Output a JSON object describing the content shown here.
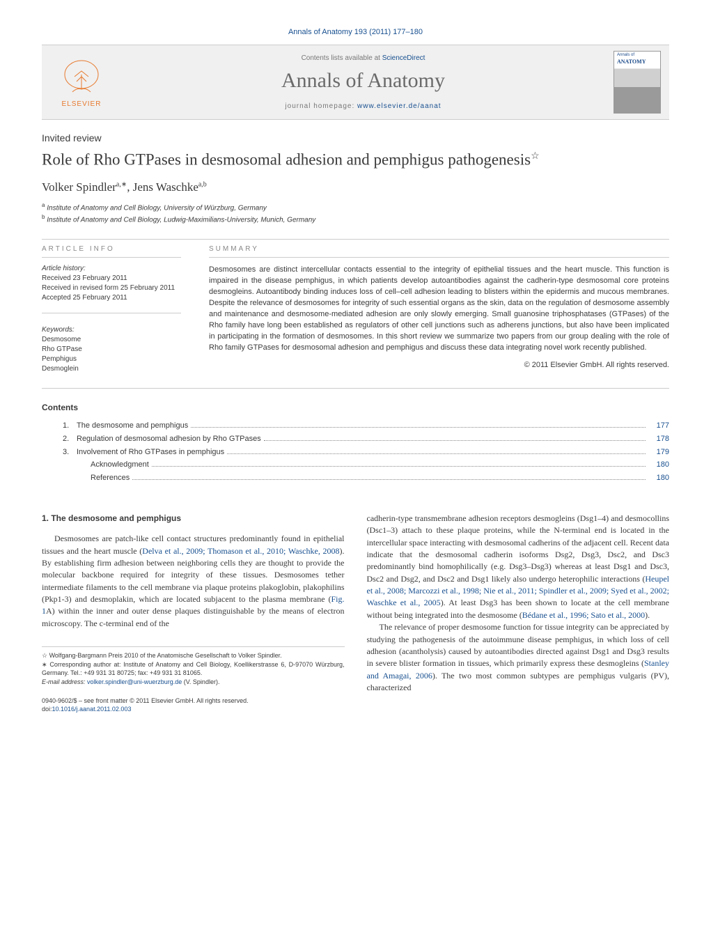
{
  "journal_ref": "Annals of Anatomy 193 (2011) 177–180",
  "header": {
    "contents_line_prefix": "Contents lists available at ",
    "sciencedirect": "ScienceDirect",
    "journal_name": "Annals of Anatomy",
    "homepage_prefix": "journal homepage: ",
    "homepage_url": "www.elsevier.de/aanat",
    "elsevier": "ELSEVIER",
    "cover_line1": "Annals of",
    "cover_line2": "ANATOMY"
  },
  "article": {
    "type": "Invited review",
    "title": "Role of Rho GTPases in desmosomal adhesion and pemphigus pathogenesis",
    "star": "☆",
    "authors_html_parts": {
      "a1_name": "Volker Spindler",
      "a1_sup": "a,∗",
      "sep": ", ",
      "a2_name": "Jens Waschke",
      "a2_sup": "a,b"
    },
    "affiliations": [
      {
        "sup": "a",
        "text": "Institute of Anatomy and Cell Biology, University of Würzburg, Germany"
      },
      {
        "sup": "b",
        "text": "Institute of Anatomy and Cell Biology, Ludwig-Maximilians-University, Munich, Germany"
      }
    ]
  },
  "info": {
    "article_info_label": "ARTICLE INFO",
    "history_label": "Article history:",
    "history": [
      "Received 23 February 2011",
      "Received in revised form 25 February 2011",
      "Accepted 25 February 2011"
    ],
    "keywords_label": "Keywords:",
    "keywords": [
      "Desmosome",
      "Rho GTPase",
      "Pemphigus",
      "Desmoglein"
    ]
  },
  "summary": {
    "label": "SUMMARY",
    "text": "Desmosomes are distinct intercellular contacts essential to the integrity of epithelial tissues and the heart muscle. This function is impaired in the disease pemphigus, in which patients develop autoantibodies against the cadherin-type desmosomal core proteins desmogleins. Autoantibody binding induces loss of cell–cell adhesion leading to blisters within the epidermis and mucous membranes. Despite the relevance of desmosomes for integrity of such essential organs as the skin, data on the regulation of desmosome assembly and maintenance and desmosome-mediated adhesion are only slowly emerging. Small guanosine triphosphatases (GTPases) of the Rho family have long been established as regulators of other cell junctions such as adherens junctions, but also have been implicated in participating in the formation of desmosomes. In this short review we summarize two papers from our group dealing with the role of Rho family GTPases for desmosomal adhesion and pemphigus and discuss these data integrating novel work recently published.",
    "copyright": "© 2011 Elsevier GmbH. All rights reserved."
  },
  "contents": {
    "heading": "Contents",
    "items": [
      {
        "num": "1.",
        "label": "The desmosome and pemphigus",
        "page": "177",
        "indent": false
      },
      {
        "num": "2.",
        "label": "Regulation of desmosomal adhesion by Rho GTPases",
        "page": "178",
        "indent": false
      },
      {
        "num": "3.",
        "label": "Involvement of Rho GTPases in pemphigus",
        "page": "179",
        "indent": false
      },
      {
        "num": "",
        "label": "Acknowledgment",
        "page": "180",
        "indent": true
      },
      {
        "num": "",
        "label": "References",
        "page": "180",
        "indent": true
      }
    ]
  },
  "body": {
    "heading1": "1. The desmosome and pemphigus",
    "col1_para1_a": "Desmosomes are patch-like cell contact structures predominantly found in epithelial tissues and the heart muscle (",
    "col1_para1_ref1": "Delva et al., 2009; Thomason et al., 2010; Waschke, 2008",
    "col1_para1_b": "). By establishing firm adhesion between neighboring cells they are thought to provide the molecular backbone required for integrity of these tissues. Desmosomes tether intermediate filaments to the cell membrane via plaque proteins plakoglobin, plakophilins (Pkp1-3) and desmoplakin, which are located subjacent to the plasma membrane (",
    "col1_para1_ref2": "Fig. 1",
    "col1_para1_c": "A) within the inner and outer dense plaques distinguishable by the means of electron microscopy. The c-terminal end of the",
    "col2_para1_a": "cadherin-type transmembrane adhesion receptors desmogleins (Dsg1–4) and desmocollins (Dsc1–3) attach to these plaque proteins, while the N-terminal end is located in the intercellular space interacting with desmosomal cadherins of the adjacent cell. Recent data indicate that the desmosomal cadherin isoforms Dsg2, Dsg3, Dsc2, and Dsc3 predominantly bind homophilically (e.g. Dsg3–Dsg3) whereas at least Dsg1 and Dsc3, Dsc2 and Dsg2, and Dsc2 and Dsg1 likely also undergo heterophilic interactions (",
    "col2_para1_ref1": "Heupel et al., 2008; Marcozzi et al., 1998; Nie et al., 2011; Spindler et al., 2009; Syed et al., 2002; Waschke et al., 2005",
    "col2_para1_b": "). At least Dsg3 has been shown to locate at the cell membrane without being integrated into the desmosome (",
    "col2_para1_ref2": "Bédane et al., 1996; Sato et al., 2000",
    "col2_para1_c": ").",
    "col2_para2_a": "The relevance of proper desmosome function for tissue integrity can be appreciated by studying the pathogenesis of the autoimmune disease pemphigus, in which loss of cell adhesion (acantholysis) caused by autoantibodies directed against Dsg1 and Dsg3 results in severe blister formation in tissues, which primarily express these desmogleins (",
    "col2_para2_ref1": "Stanley and Amagai, 2006",
    "col2_para2_b": "). The two most common subtypes are pemphigus vulgaris (PV), characterized"
  },
  "footnotes": {
    "star": "☆ Wolfgang-Bargmann Preis 2010 of the Anatomische Gesellschaft to Volker Spindler.",
    "corr_label": "∗ Corresponding author at: Institute of Anatomy and Cell Biology, Koellikerstrasse 6, D-97070 Würzburg, Germany. Tel.: +49 931 31 80725; fax: +49 931 31 81065.",
    "email_label": "E-mail address: ",
    "email": "volker.spindler@uni-wuerzburg.de",
    "email_suffix": " (V. Spindler)."
  },
  "footer": {
    "line1": "0940-9602/$ – see front matter © 2011 Elsevier GmbH. All rights reserved.",
    "doi_prefix": "doi:",
    "doi": "10.1016/j.aanat.2011.02.003"
  },
  "colors": {
    "link": "#174f8f",
    "text": "#3a3a3a",
    "muted": "#888888",
    "elsevier_orange": "#e77a2f",
    "background": "#ffffff",
    "divider": "#cccccc"
  },
  "typography": {
    "body_font": "Georgia, serif",
    "ui_font": "Arial, sans-serif",
    "title_fontsize": 23,
    "journal_name_fontsize": 30,
    "authors_fontsize": 17,
    "body_fontsize": 12,
    "summary_fontsize": 11,
    "footnote_fontsize": 9
  }
}
